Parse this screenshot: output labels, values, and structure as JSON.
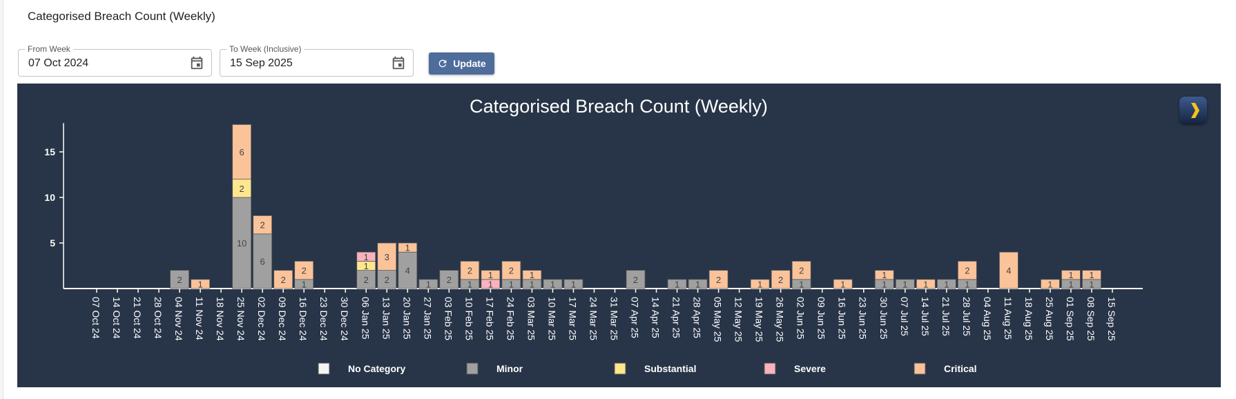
{
  "page": {
    "title": "Categorised Breach Count (Weekly)"
  },
  "filters": {
    "from": {
      "label": "From Week",
      "value": "07 Oct 2024"
    },
    "to": {
      "label": "To Week (Inclusive)",
      "value": "15 Sep 2025"
    },
    "update_label": "Update"
  },
  "colors": {
    "panel_bg": "#283548",
    "No Category": "#f5f5f5",
    "Minor": "#a0a0a0",
    "Substantial": "#fde68e",
    "Severe": "#f9b2be",
    "Critical": "#fbc39a"
  },
  "chart_data": {
    "type": "bar",
    "stacked": true,
    "title": "Categorised Breach Count (Weekly)",
    "xlabel": "",
    "ylabel": "",
    "ylim": [
      0,
      18
    ],
    "yticks": [
      5,
      10,
      15
    ],
    "legend_position": "bottom",
    "categories": [
      "07 Oct 24",
      "14 Oct 24",
      "21 Oct 24",
      "28 Oct 24",
      "04 Nov 24",
      "11 Nov 24",
      "18 Nov 24",
      "25 Nov 24",
      "02 Dec 24",
      "09 Dec 24",
      "16 Dec 24",
      "23 Dec 24",
      "30 Dec 24",
      "06 Jan 25",
      "13 Jan 25",
      "20 Jan 25",
      "27 Jan 25",
      "03 Feb 25",
      "10 Feb 25",
      "17 Feb 25",
      "24 Feb 25",
      "03 Mar 25",
      "10 Mar 25",
      "17 Mar 25",
      "24 Mar 25",
      "31 Mar 25",
      "07 Apr 25",
      "14 Apr 25",
      "21 Apr 25",
      "28 Apr 25",
      "05 May 25",
      "12 May 25",
      "19 May 25",
      "26 May 25",
      "02 Jun 25",
      "09 Jun 25",
      "16 Jun 25",
      "23 Jun 25",
      "30 Jun 25",
      "07 Jul 25",
      "14 Jul 25",
      "21 Jul 25",
      "28 Jul 25",
      "04 Aug 25",
      "11 Aug 25",
      "18 Aug 25",
      "25 Aug 25",
      "01 Sep 25",
      "08 Sep 25",
      "15 Sep 25"
    ],
    "series": [
      {
        "name": "No Category",
        "values": [
          0,
          0,
          0,
          0,
          0,
          0,
          0,
          0,
          0,
          0,
          0,
          0,
          0,
          0,
          0,
          0,
          0,
          0,
          0,
          0,
          0,
          0,
          0,
          0,
          0,
          0,
          0,
          0,
          0,
          0,
          0,
          0,
          0,
          0,
          0,
          0,
          0,
          0,
          0,
          0,
          0,
          0,
          0,
          0,
          0,
          0,
          0,
          0,
          0,
          0
        ]
      },
      {
        "name": "Minor",
        "values": [
          0,
          0,
          0,
          0,
          2,
          0,
          0,
          10,
          6,
          0,
          1,
          0,
          0,
          2,
          2,
          4,
          1,
          2,
          1,
          0,
          1,
          1,
          1,
          1,
          0,
          0,
          2,
          0,
          1,
          1,
          0,
          0,
          0,
          0,
          1,
          0,
          0,
          0,
          1,
          1,
          0,
          1,
          1,
          0,
          0,
          0,
          0,
          1,
          1,
          0
        ]
      },
      {
        "name": "Substantial",
        "values": [
          0,
          0,
          0,
          0,
          0,
          0,
          0,
          2,
          0,
          0,
          0,
          0,
          0,
          1,
          0,
          0,
          0,
          0,
          0,
          0,
          0,
          0,
          0,
          0,
          0,
          0,
          0,
          0,
          0,
          0,
          0,
          0,
          0,
          0,
          0,
          0,
          0,
          0,
          0,
          0,
          0,
          0,
          0,
          0,
          0,
          0,
          0,
          0,
          0,
          0
        ]
      },
      {
        "name": "Severe",
        "values": [
          0,
          0,
          0,
          0,
          0,
          0,
          0,
          0,
          0,
          0,
          0,
          0,
          0,
          1,
          0,
          0,
          0,
          0,
          0,
          1,
          0,
          0,
          0,
          0,
          0,
          0,
          0,
          0,
          0,
          0,
          0,
          0,
          0,
          0,
          0,
          0,
          0,
          0,
          0,
          0,
          0,
          0,
          0,
          0,
          0,
          0,
          0,
          0,
          0,
          0
        ]
      },
      {
        "name": "Critical",
        "values": [
          0,
          0,
          0,
          0,
          0,
          1,
          0,
          6,
          2,
          2,
          2,
          0,
          0,
          0,
          3,
          1,
          0,
          0,
          2,
          1,
          2,
          1,
          0,
          0,
          0,
          0,
          0,
          0,
          0,
          0,
          2,
          0,
          1,
          2,
          2,
          0,
          1,
          0,
          1,
          0,
          1,
          0,
          2,
          0,
          4,
          0,
          1,
          1,
          1,
          0
        ]
      }
    ]
  }
}
